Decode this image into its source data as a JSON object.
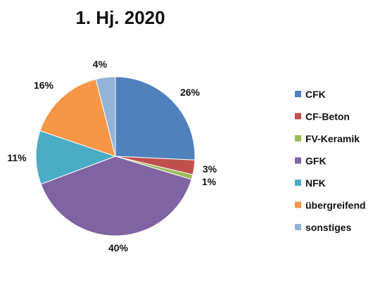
{
  "chart_data": {
    "type": "pie",
    "title": "1. Hj. 2020",
    "legend_position": "right",
    "start": "top, clockwise",
    "slices": [
      {
        "label": "CFK",
        "value": 26,
        "value_label": "26%",
        "color": "#4F81BD"
      },
      {
        "label": "CF-Beton",
        "value": 3,
        "value_label": "3%",
        "color": "#C0504D"
      },
      {
        "label": "FV-Keramik",
        "value": 1,
        "value_label": "1%",
        "color": "#9BBB59"
      },
      {
        "label": "GFK",
        "value": 40,
        "value_label": "40%",
        "color": "#8064A2"
      },
      {
        "label": "NFK",
        "value": 11,
        "value_label": "11%",
        "color": "#4BACC6"
      },
      {
        "label": "übergreifend",
        "value": 16,
        "value_label": "16%",
        "color": "#F79646"
      },
      {
        "label": "sonstiges",
        "value": 4,
        "value_label": "4%",
        "color": "#95B3D7"
      }
    ]
  }
}
